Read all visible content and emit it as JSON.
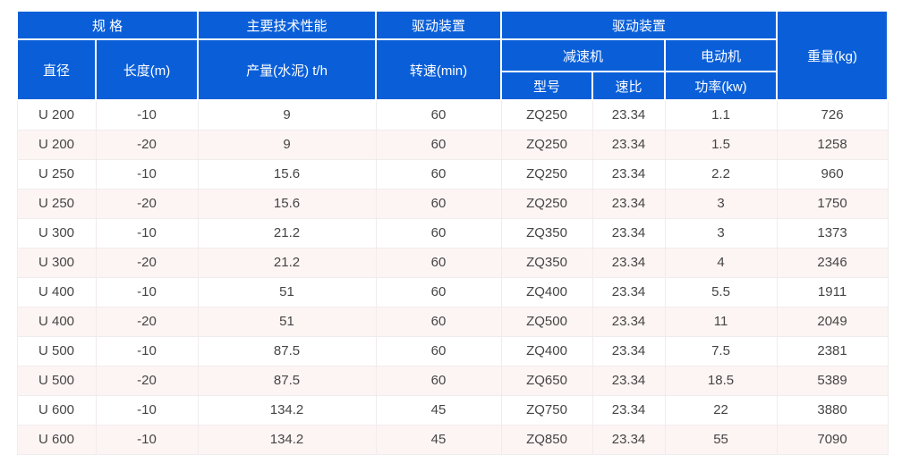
{
  "colors": {
    "header_bg": "#0a5fd9",
    "header_text": "#ffffff",
    "row_alt_bg": "#fdf5f4",
    "body_text": "#454545",
    "grid_line": "#f1ecec"
  },
  "table": {
    "header": {
      "spec_group": "规 格",
      "main_tech": "主要技术性能",
      "drive_left": "驱动装置",
      "drive_right": "驱动装置",
      "weight": "重量(kg)",
      "diameter": "直径",
      "length": "长度(m)",
      "output": "产量(水泥) t/h",
      "speed": "转速(min)",
      "reducer": "减速机",
      "motor": "电动机",
      "model": "型号",
      "ratio": "速比",
      "power": "功率(kw)"
    },
    "rows": [
      [
        "U 200",
        "-10",
        "9",
        "60",
        "ZQ250",
        "23.34",
        "1.1",
        "726"
      ],
      [
        "U 200",
        "-20",
        "9",
        "60",
        "ZQ250",
        "23.34",
        "1.5",
        "1258"
      ],
      [
        "U 250",
        "-10",
        "15.6",
        "60",
        "ZQ250",
        "23.34",
        "2.2",
        "960"
      ],
      [
        "U 250",
        "-20",
        "15.6",
        "60",
        "ZQ250",
        "23.34",
        "3",
        "1750"
      ],
      [
        "U 300",
        "-10",
        "21.2",
        "60",
        "ZQ350",
        "23.34",
        "3",
        "1373"
      ],
      [
        "U 300",
        "-20",
        "21.2",
        "60",
        "ZQ350",
        "23.34",
        "4",
        "2346"
      ],
      [
        "U 400",
        "-10",
        "51",
        "60",
        "ZQ400",
        "23.34",
        "5.5",
        "1911"
      ],
      [
        "U 400",
        "-20",
        "51",
        "60",
        "ZQ500",
        "23.34",
        "11",
        "2049"
      ],
      [
        "U 500",
        "-10",
        "87.5",
        "60",
        "ZQ400",
        "23.34",
        "7.5",
        "2381"
      ],
      [
        "U 500",
        "-20",
        "87.5",
        "60",
        "ZQ650",
        "23.34",
        "18.5",
        "5389"
      ],
      [
        "U 600",
        "-10",
        "134.2",
        "45",
        "ZQ750",
        "23.34",
        "22",
        "3880"
      ],
      [
        "U 600",
        "-10",
        "134.2",
        "45",
        "ZQ850",
        "23.34",
        "55",
        "7090"
      ]
    ]
  }
}
